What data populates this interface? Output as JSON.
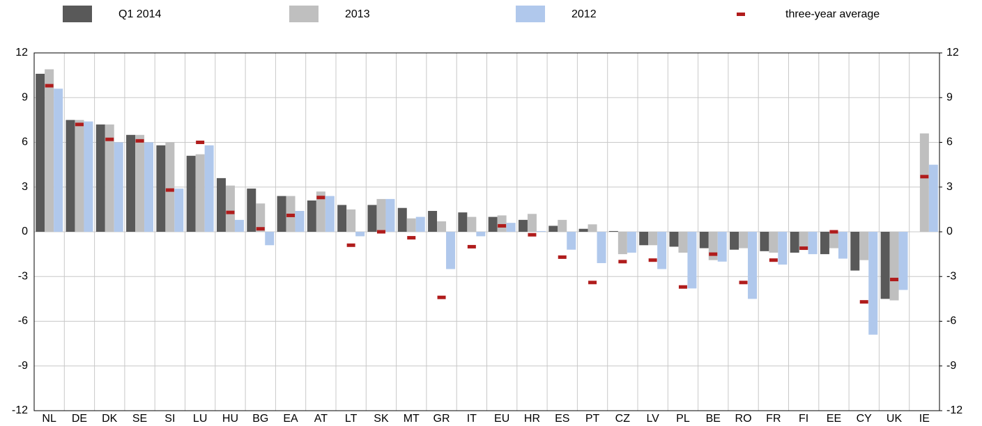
{
  "chart_data": {
    "type": "bar",
    "categories": [
      "NL",
      "DE",
      "DK",
      "SE",
      "SI",
      "LU",
      "HU",
      "BG",
      "EA",
      "AT",
      "LT",
      "SK",
      "MT",
      "GR",
      "IT",
      "EU",
      "HR",
      "ES",
      "PT",
      "CZ",
      "LV",
      "PL",
      "BE",
      "RO",
      "FR",
      "FI",
      "EE",
      "CY",
      "UK",
      "IE"
    ],
    "series": [
      {
        "name": "Q1 2014",
        "color": "#595959",
        "values": [
          10.6,
          7.5,
          7.2,
          6.5,
          5.8,
          5.1,
          3.6,
          2.9,
          2.4,
          2.1,
          1.8,
          1.8,
          1.6,
          1.4,
          1.3,
          1.0,
          0.8,
          0.4,
          0.2,
          0.05,
          -0.9,
          -1.0,
          -1.1,
          -1.2,
          -1.3,
          -1.4,
          -1.5,
          -2.6,
          -4.5,
          null
        ]
      },
      {
        "name": "2013",
        "color": "#bfbfbf",
        "values": [
          10.9,
          7.5,
          7.2,
          6.5,
          6.0,
          5.2,
          3.1,
          1.9,
          2.4,
          2.7,
          1.5,
          2.2,
          0.9,
          0.7,
          1.0,
          1.1,
          1.2,
          0.8,
          0.5,
          -1.5,
          -0.9,
          -1.4,
          -1.9,
          -1.1,
          -1.4,
          -1.2,
          -1.1,
          -1.9,
          -4.6,
          6.6
        ]
      },
      {
        "name": "2012",
        "color": "#b0c8ec",
        "values": [
          9.6,
          7.4,
          6.0,
          6.0,
          2.9,
          5.8,
          0.8,
          -0.9,
          1.4,
          2.4,
          -0.3,
          2.2,
          1.0,
          -2.5,
          -0.3,
          0.6,
          0.05,
          -1.2,
          -2.1,
          -1.4,
          -2.5,
          -3.8,
          -2.0,
          -4.5,
          -2.2,
          -1.5,
          -1.8,
          -6.9,
          -3.9,
          4.5
        ]
      },
      {
        "name": "three-year average",
        "type": "marker",
        "color": "#b01c1c",
        "values": [
          9.8,
          7.2,
          6.2,
          6.1,
          2.8,
          6.0,
          1.3,
          0.2,
          1.1,
          2.3,
          -0.9,
          0.0,
          -0.4,
          -4.4,
          -1.0,
          0.4,
          -0.2,
          -1.7,
          -3.4,
          -2.0,
          -1.9,
          -3.7,
          -1.5,
          -3.4,
          -1.9,
          -1.1,
          0.0,
          -4.7,
          -3.2,
          3.7
        ]
      }
    ],
    "ylim": [
      -12,
      12
    ],
    "yticks": [
      -12,
      -9,
      -6,
      -3,
      0,
      3,
      6,
      9,
      12
    ],
    "y2lim": [
      -12,
      12
    ],
    "y2ticks": [
      -12,
      -9,
      -6,
      -3,
      0,
      3,
      6,
      9,
      12
    ],
    "grid": true
  }
}
